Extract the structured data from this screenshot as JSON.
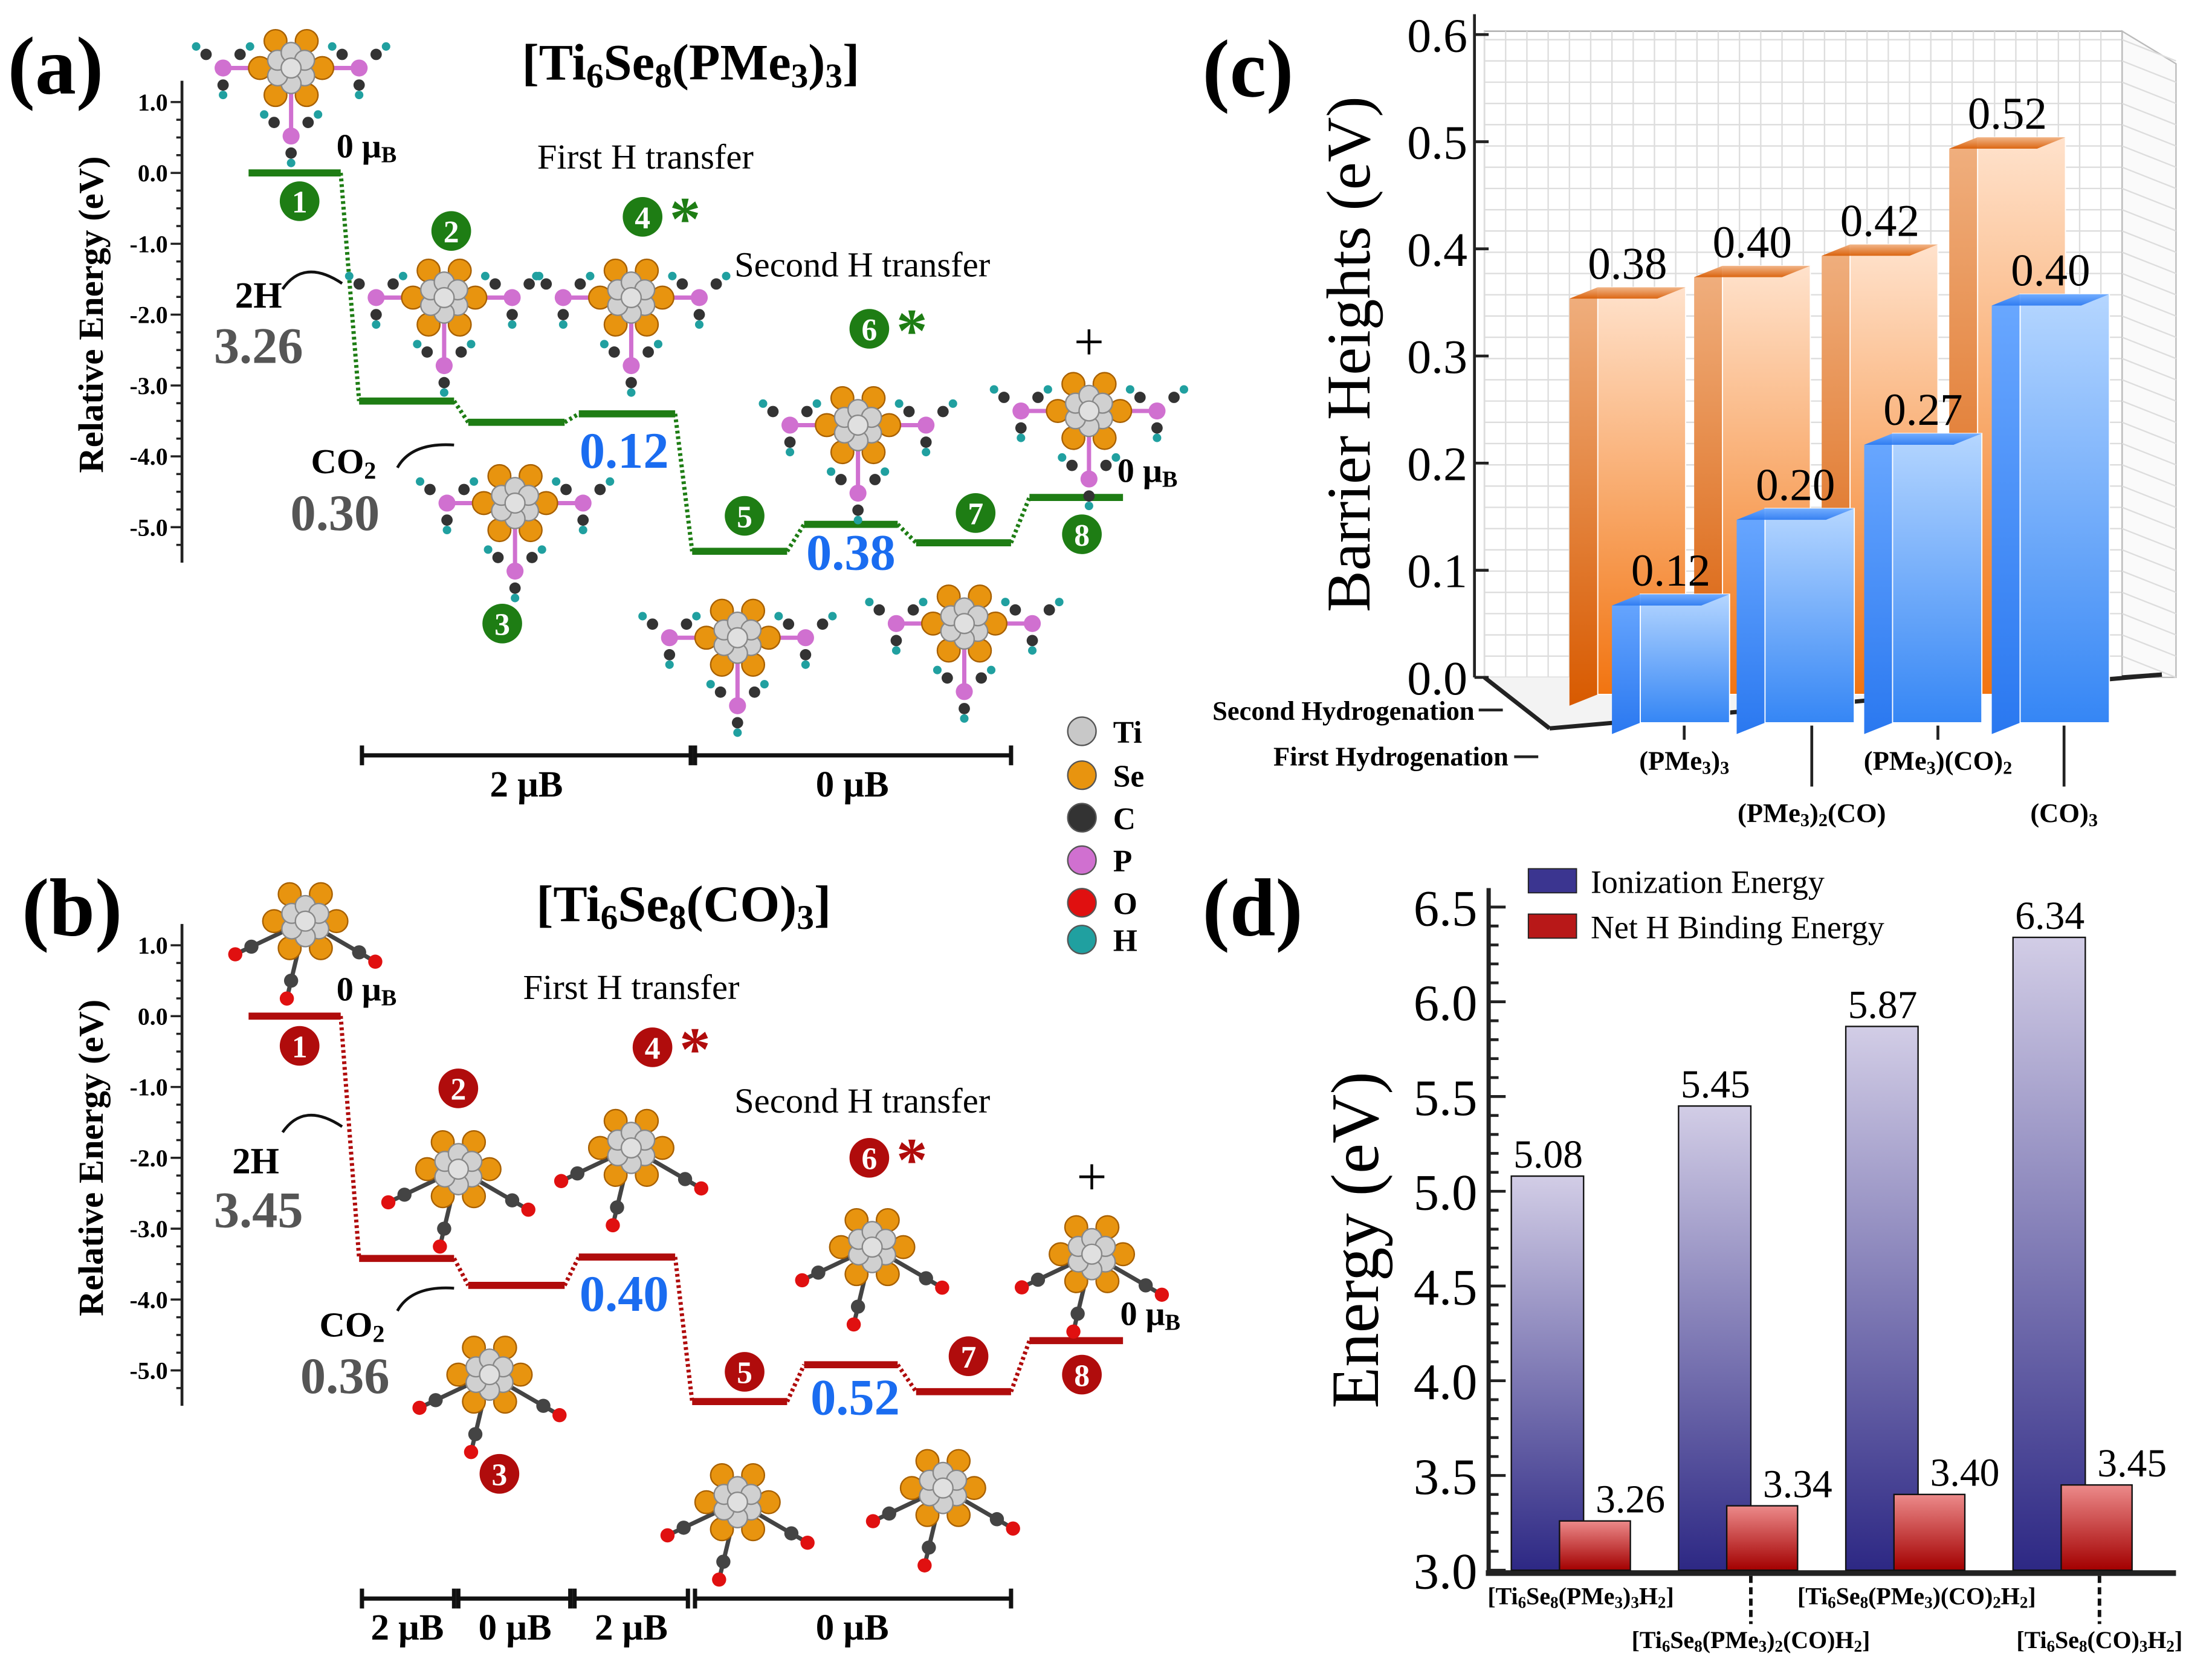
{
  "panel_a": {
    "label": "(a)",
    "title": "[Ti6Se8(PMe3)3]",
    "ylabel": "Relative Energy (eV)",
    "yticks": [
      "1.0",
      "0.0",
      "-1.0",
      "-2.0",
      "-3.0",
      "-4.0",
      "-5.0"
    ],
    "first_h": "First H transfer",
    "second_h": "Second H transfer",
    "h2_label": "2H",
    "h2_binding": "3.26",
    "co2_label": "CO2",
    "co2_binding": "0.30",
    "spin_start": "0 μB",
    "spin_end": "0 μB",
    "plus": "+",
    "barrier1": "0.12",
    "barrier2": "0.38",
    "levels": [
      0.0,
      -3.22,
      -3.52,
      -3.4,
      -5.34,
      -4.96,
      -5.22,
      -4.58
    ],
    "steps": [
      "1",
      "2",
      "3",
      "4",
      "5",
      "6",
      "7",
      "8"
    ],
    "asterisk": "*",
    "spin_bars": [
      "2 μB",
      "0 μB"
    ],
    "color": "#1e7d14"
  },
  "panel_b": {
    "label": "(b)",
    "title": "[Ti6Se8(CO)3]",
    "ylabel": "Relative Energy (eV)",
    "yticks": [
      "1.0",
      "0.0",
      "-1.0",
      "-2.0",
      "-3.0",
      "-4.0",
      "-5.0"
    ],
    "first_h": "First H transfer",
    "second_h": "Second H transfer",
    "h2_label": "2H",
    "h2_binding": "3.45",
    "co2_label": "CO2",
    "co2_binding": "0.36",
    "spin_start": "0 μB",
    "spin_end": "0 μB",
    "plus": "+",
    "barrier1": "0.40",
    "barrier2": "0.52",
    "levels": [
      0.0,
      -3.42,
      -3.8,
      -3.4,
      -5.44,
      -4.92,
      -5.3,
      -4.58
    ],
    "steps": [
      "1",
      "2",
      "3",
      "4",
      "5",
      "6",
      "7",
      "8"
    ],
    "asterisk": "*",
    "spin_bars": [
      "2 μB",
      "0 μB",
      "2 μB",
      "0 μB"
    ],
    "color": "#b00c0c"
  },
  "legend_atoms": [
    {
      "label": "Ti",
      "color": "#c8c8c8"
    },
    {
      "label": "Se",
      "color": "#e8940f"
    },
    {
      "label": "C",
      "color": "#333333"
    },
    {
      "label": "P",
      "color": "#d070d0"
    },
    {
      "label": "O",
      "color": "#e01010"
    },
    {
      "label": "H",
      "color": "#20a0a0"
    }
  ],
  "chart_data": [
    {
      "type": "bar",
      "panel": "(c)",
      "ylabel": "Barrier Heights (eV)",
      "ylim": [
        0.0,
        0.6
      ],
      "yticks": [
        "0.0",
        "0.1",
        "0.2",
        "0.3",
        "0.4",
        "0.5",
        "0.6"
      ],
      "categories": [
        "(PMe3)3",
        "(PMe3)2(CO)",
        "(PMe3)(CO)2",
        "(CO)3"
      ],
      "series": [
        {
          "name": "Second Hydrogenation",
          "values": [
            0.38,
            0.4,
            0.42,
            0.52
          ],
          "labels": [
            "0.38",
            "0.40",
            "0.42",
            "0.52"
          ],
          "color": "#f07a20"
        },
        {
          "name": "First Hydrogenation",
          "values": [
            0.12,
            0.2,
            0.27,
            0.4
          ],
          "labels": [
            "0.12",
            "0.20",
            "0.27",
            "0.40"
          ],
          "color": "#3a8af5"
        }
      ],
      "grid": true
    },
    {
      "type": "bar",
      "panel": "(d)",
      "ylabel": "Energy (eV)",
      "ylim": [
        3.0,
        6.5
      ],
      "yticks": [
        "3.0",
        "3.5",
        "4.0",
        "4.5",
        "5.0",
        "5.5",
        "6.0",
        "6.5"
      ],
      "categories": [
        "[Ti6Se8(PMe3)3H2]",
        "[Ti6Se8(PMe3)2(CO)H2]",
        "[Ti6Se8(PMe3)(CO)2H2]",
        "[Ti6Se8(CO)3H2]"
      ],
      "series": [
        {
          "name": "Ionization Energy",
          "values": [
            5.08,
            5.45,
            5.87,
            6.34
          ],
          "labels": [
            "5.08",
            "5.45",
            "5.87",
            "6.34"
          ],
          "color": "#3b3590"
        },
        {
          "name": "Net H Binding Energy",
          "values": [
            3.26,
            3.34,
            3.4,
            3.45
          ],
          "labels": [
            "3.26",
            "3.34",
            "3.40",
            "3.45"
          ],
          "color": "#b81818"
        }
      ],
      "legend": "top-left"
    }
  ]
}
